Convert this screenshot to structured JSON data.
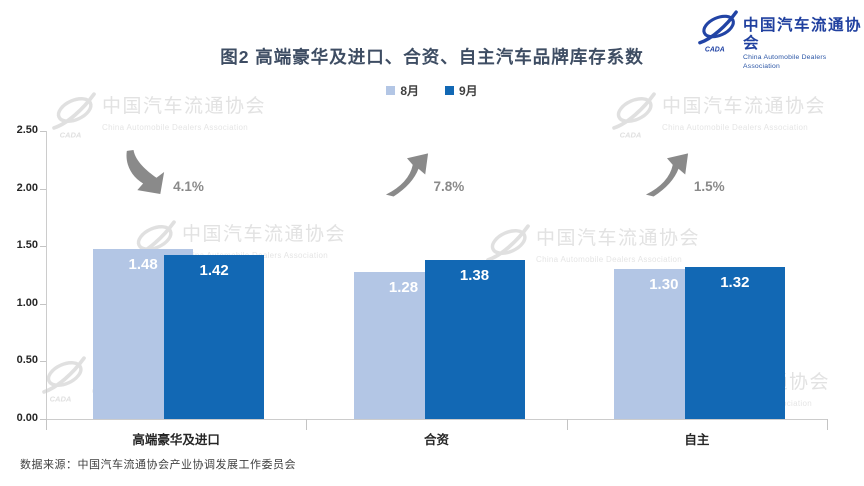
{
  "title": "图2  高端豪华及进口、合资、自主汽车品牌库存系数",
  "brand": {
    "name_cn": "中国汽车流通协会",
    "name_en": "China Automobile Dealers Association",
    "badge": "CADA",
    "color": "#2244A5"
  },
  "watermark": {
    "name_cn": "中国汽车流通协会",
    "name_en": "China Automobile Dealers Association",
    "badge": "CADA",
    "color": "#E2E2E2"
  },
  "chart_data": {
    "type": "bar",
    "title": "图2  高端豪华及进口、合资、自主汽车品牌库存系数",
    "categories": [
      "高端豪华及进口",
      "合资",
      "自主"
    ],
    "series": [
      {
        "name": "8月",
        "color": "#B3C6E5",
        "values": [
          1.48,
          1.28,
          1.3
        ]
      },
      {
        "name": "9月",
        "color": "#1268B4",
        "values": [
          1.42,
          1.38,
          1.32
        ]
      }
    ],
    "change_annotations": [
      {
        "text": "4.1%",
        "direction": "down"
      },
      {
        "text": "7.8%",
        "direction": "up"
      },
      {
        "text": "1.5%",
        "direction": "up"
      }
    ],
    "xlabel": "",
    "ylabel": "",
    "ylim": [
      0,
      2.5
    ],
    "ytick_labels": [
      "0.00",
      "0.50",
      "1.00",
      "1.50",
      "2.00",
      "2.50"
    ],
    "value_label_decimals": 2,
    "grid": false,
    "legend_position": "top-center",
    "arrow_color": "#8A8A8A"
  },
  "source_note": "数据来源：中国汽车流通协会产业协调发展工作委员会"
}
